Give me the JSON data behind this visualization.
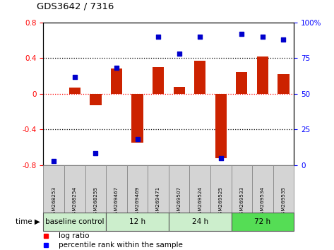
{
  "title": "GDS3642 / 7316",
  "samples": [
    "GSM268253",
    "GSM268254",
    "GSM268255",
    "GSM269467",
    "GSM269469",
    "GSM269471",
    "GSM269507",
    "GSM269524",
    "GSM269525",
    "GSM269533",
    "GSM269534",
    "GSM269535"
  ],
  "log_ratio": [
    0.0,
    0.07,
    -0.13,
    0.28,
    -0.55,
    0.3,
    0.08,
    0.37,
    -0.72,
    0.24,
    0.42,
    0.22
  ],
  "percentile_rank": [
    3,
    62,
    8,
    68,
    18,
    90,
    78,
    90,
    5,
    92,
    90,
    88
  ],
  "group_defs": [
    {
      "label": "baseline control",
      "start": 0,
      "end": 3,
      "color": "#CCEECC"
    },
    {
      "label": "12 h",
      "start": 3,
      "end": 6,
      "color": "#CCEECC"
    },
    {
      "label": "24 h",
      "start": 6,
      "end": 9,
      "color": "#CCEECC"
    },
    {
      "label": "72 h",
      "start": 9,
      "end": 12,
      "color": "#55DD55"
    }
  ],
  "bar_color": "#CC2200",
  "scatter_color": "#0000CC",
  "ylim_left": [
    -0.8,
    0.8
  ],
  "ylim_right": [
    0,
    100
  ],
  "yticks_left": [
    -0.8,
    -0.4,
    0.0,
    0.4,
    0.8
  ],
  "yticks_right": [
    0,
    25,
    50,
    75,
    100
  ],
  "dotted_lines": [
    -0.4,
    0.4
  ],
  "bg_color": "#FFFFFF",
  "sample_bg": "#D4D4D4",
  "group_border_indices": [
    3,
    6,
    9
  ]
}
